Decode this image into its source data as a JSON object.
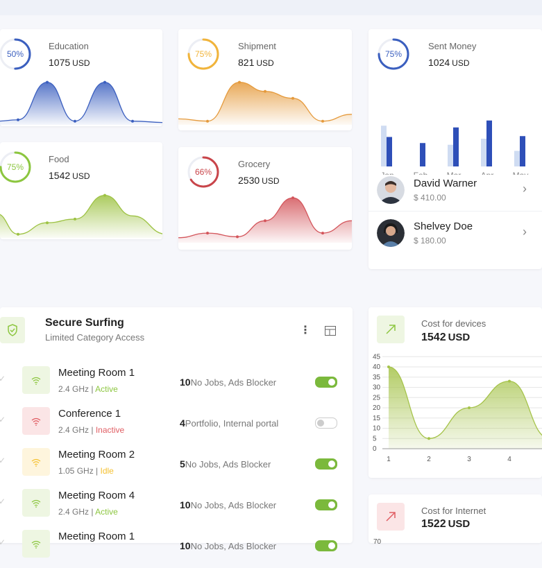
{
  "stat_cards": [
    {
      "id": "education",
      "label": "Education",
      "amount": "1075",
      "currency": "USD",
      "percent_label": "50%",
      "percent": 50,
      "color": "#3b5fbf",
      "fill": "#3b5fbf"
    },
    {
      "id": "shipment",
      "label": "Shipment",
      "amount": "821",
      "currency": "USD",
      "percent_label": "75%",
      "percent": 75,
      "color": "#f1b43b",
      "fill": "#e59a3c"
    },
    {
      "id": "food",
      "label": "Food",
      "amount": "1542",
      "currency": "USD",
      "percent_label": "75%",
      "percent": 75,
      "color": "#8cc63f",
      "fill": "#9dc243"
    },
    {
      "id": "grocery",
      "label": "Grocery",
      "amount": "2530",
      "currency": "USD",
      "percent_label": "66%",
      "percent": 66,
      "color": "#c9454a",
      "fill": "#d3555b"
    }
  ],
  "sent_money": {
    "label": "Sent Money",
    "amount": "1024",
    "currency": "USD",
    "percent_label": "75%",
    "percent": 75,
    "color": "#3b5fbf",
    "chart_data": {
      "type": "bar",
      "categories": [
        "Jan",
        "Feb",
        "Mar",
        "Apr",
        "May"
      ],
      "series": [
        {
          "values": [
            47,
            0,
            25,
            32,
            18
          ],
          "color": "#cfdcf2"
        },
        {
          "values": [
            34,
            27,
            45,
            53,
            35
          ],
          "color": "#2e4fb8"
        }
      ]
    }
  },
  "contacts": [
    {
      "name": "David Warner",
      "amount": "$ 410.00"
    },
    {
      "name": "Shelvey Doe",
      "amount": "$ 180.00"
    }
  ],
  "secure_surfing": {
    "title": "Secure Surfing",
    "subtitle": "Limited Category Access",
    "menu_icon": "more-vertical-icon",
    "layout_icon": "layout-icon",
    "devices": [
      {
        "name": "Meeting Room 1",
        "freq": "2.4 GHz",
        "status": "Active",
        "status_color": "#8cc63f",
        "icon_bg": "#eef6e2",
        "icon_color": "#8cc63f",
        "count": "10",
        "desc": "No Jobs, Ads Blocker",
        "enabled": true
      },
      {
        "name": "Conference 1",
        "freq": "2.4 GHz",
        "status": "Inactive",
        "status_color": "#e05c62",
        "icon_bg": "#fbe5e6",
        "icon_color": "#e05c62",
        "count": "4",
        "desc": "Portfolio, Internal portal",
        "enabled": false
      },
      {
        "name": "Meeting Room 2",
        "freq": "1.05 GHz",
        "status": "Idle",
        "status_color": "#f5c132",
        "icon_bg": "#fef5dd",
        "icon_color": "#f5c132",
        "count": "5",
        "desc": "No Jobs, Ads Blocker",
        "enabled": true
      },
      {
        "name": "Meeting Room 4",
        "freq": "2.4 GHz",
        "status": "Active",
        "status_color": "#8cc63f",
        "icon_bg": "#eef6e2",
        "icon_color": "#8cc63f",
        "count": "10",
        "desc": "No Jobs, Ads Blocker",
        "enabled": true
      },
      {
        "name": "Meeting Room 1",
        "freq": "",
        "status": "",
        "status_color": "#8cc63f",
        "icon_bg": "#eef6e2",
        "icon_color": "#8cc63f",
        "count": "10",
        "desc": "No Jobs, Ads Blocker",
        "enabled": true
      }
    ]
  },
  "cost_devices": {
    "label": "Cost for devices",
    "amount": "1542",
    "currency": "USD",
    "chart_data": {
      "type": "area",
      "x": [
        1,
        2,
        3,
        4,
        5
      ],
      "y": [
        40,
        5,
        20,
        33,
        5
      ],
      "yticks": [
        0,
        5,
        10,
        15,
        20,
        25,
        30,
        35,
        40,
        45
      ],
      "xticks": [
        1,
        2,
        3,
        4
      ],
      "ylim": [
        0,
        45
      ],
      "color": "#a5c34a"
    }
  },
  "cost_internet": {
    "label": "Cost for Internet",
    "amount": "1522",
    "currency": "USD",
    "chart_data": {
      "type": "area",
      "yticks_visible": [
        "70"
      ]
    }
  }
}
